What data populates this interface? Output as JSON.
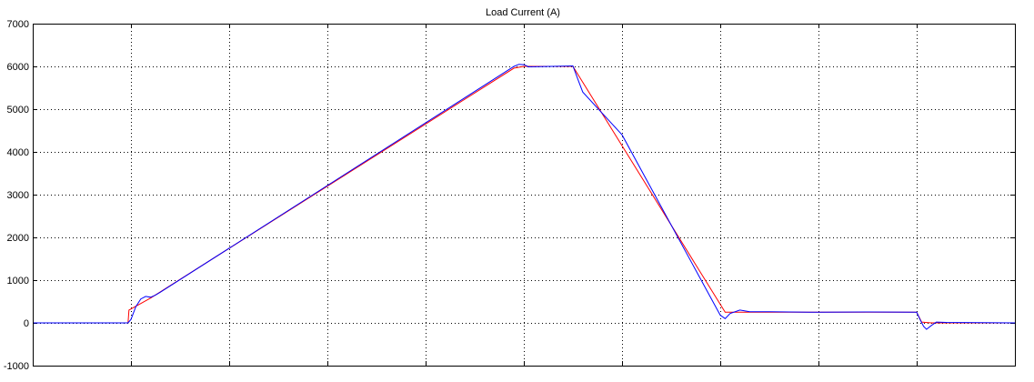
{
  "chart_data": {
    "type": "line",
    "title": "Load Current (A)",
    "xlabel": "",
    "ylabel": "",
    "xlim": [
      0,
      10
    ],
    "ylim": [
      -1000,
      7000
    ],
    "yticks": [
      -1000,
      0,
      1000,
      2000,
      3000,
      4000,
      5000,
      6000,
      7000
    ],
    "ytick_labels": [
      "-1000",
      "0",
      "1000",
      "2000",
      "3000",
      "4000",
      "5000",
      "6000",
      "7000"
    ],
    "xticks": [
      0,
      1,
      2,
      3,
      4,
      5,
      6,
      7,
      8,
      9,
      10
    ],
    "grid": true,
    "series": [
      {
        "color": "#ff0000",
        "x": [
          0,
          0.97,
          0.98,
          1.2,
          4.9,
          5.0,
          5.5,
          7.05,
          7.15,
          8.0,
          9.0,
          9.05,
          9.15,
          10
        ],
        "y": [
          0,
          0,
          300,
          580,
          5960,
          6000,
          6000,
          250,
          250,
          250,
          250,
          20,
          0,
          0
        ]
      },
      {
        "color": "#0000ff",
        "x": [
          0,
          0.97,
          1.0,
          1.05,
          1.1,
          1.15,
          1.2,
          1.25,
          1.3,
          4.9,
          4.95,
          5.0,
          5.05,
          5.5,
          5.55,
          5.6,
          6.0,
          7.0,
          7.05,
          7.1,
          7.2,
          7.3,
          7.5,
          8.0,
          8.5,
          9.0,
          9.03,
          9.07,
          9.1,
          9.15,
          9.2,
          9.3,
          10
        ],
        "y": [
          0,
          0,
          80,
          380,
          560,
          620,
          600,
          650,
          720,
          6000,
          6050,
          6040,
          5990,
          6010,
          5700,
          5400,
          4400,
          180,
          100,
          220,
          300,
          260,
          260,
          250,
          255,
          250,
          100,
          -80,
          -150,
          -60,
          20,
          10,
          0
        ]
      }
    ]
  }
}
